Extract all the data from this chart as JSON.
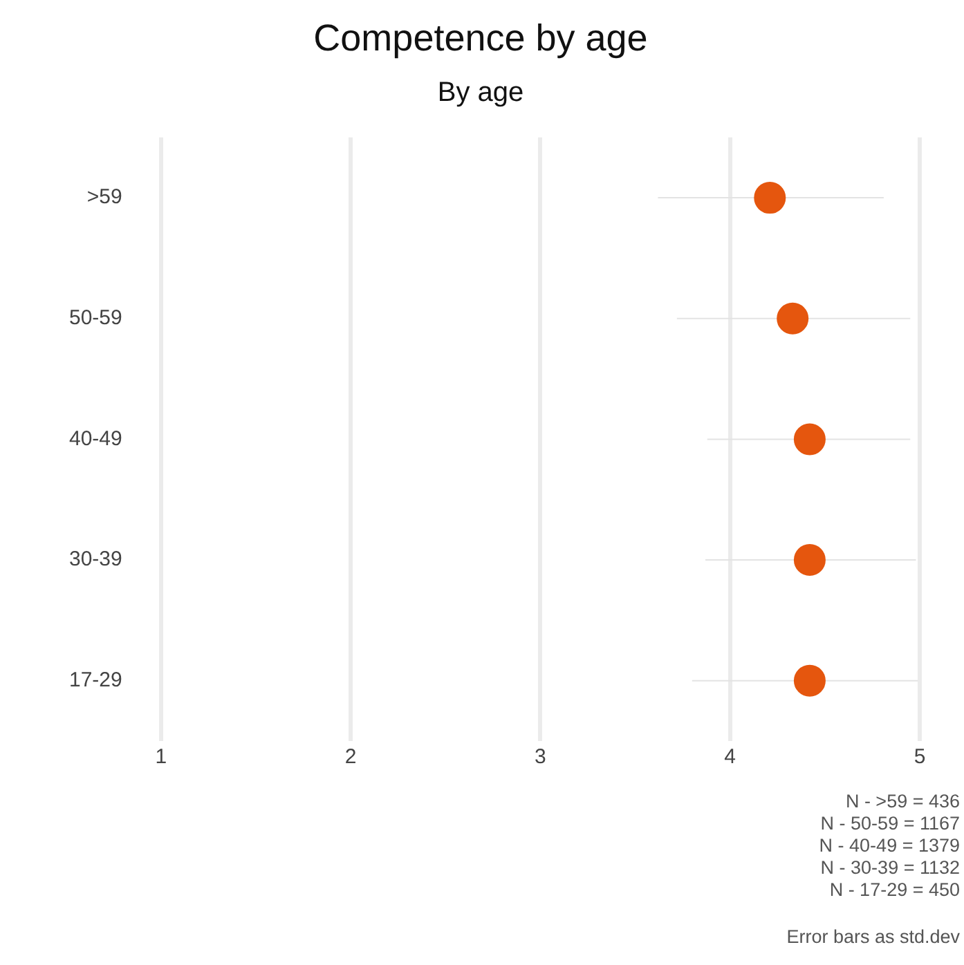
{
  "chart_data": {
    "type": "scatter",
    "orientation": "horizontal",
    "title": "Competence by age",
    "subtitle": "By age",
    "categories": [
      ">59",
      "50-59",
      "40-49",
      "30-39",
      "17-29"
    ],
    "values": [
      4.21,
      4.33,
      4.42,
      4.42,
      4.42
    ],
    "errors": [
      [
        3.62,
        4.81
      ],
      [
        3.72,
        4.95
      ],
      [
        3.88,
        4.95
      ],
      [
        3.87,
        4.98
      ],
      [
        3.8,
        4.99
      ]
    ],
    "color": "#e5560e",
    "marker": "circle",
    "grid": "x",
    "legend": false,
    "xlim": [
      1,
      5
    ],
    "xticks": [
      1,
      2,
      3,
      4,
      5
    ],
    "annotations": [
      "N - >59 = 436",
      "N - 50-59 = 1167",
      "N - 40-49 = 1379",
      "N - 30-39 = 1132",
      "N - 17-29 = 450",
      "Error bars as std.dev"
    ]
  }
}
